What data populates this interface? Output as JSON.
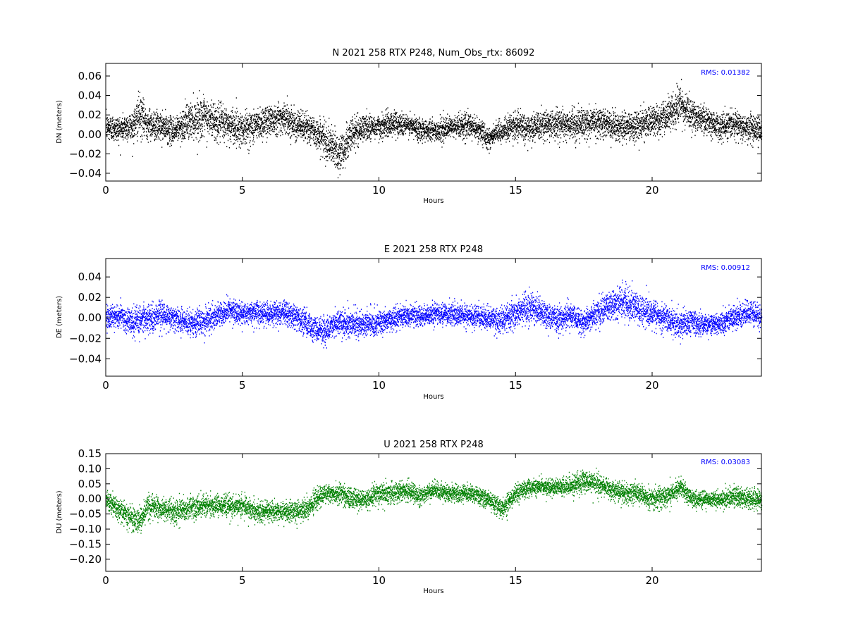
{
  "colors": {
    "N": "#000000",
    "E": "#0000ff",
    "U": "#008000",
    "rms_text": "#0000ff"
  },
  "chart_data": [
    {
      "type": "scatter",
      "component": "N",
      "title": "N 2021 258 RTX  P248, Num_Obs_rtx: 86092",
      "xlabel": "Hours",
      "ylabel": "DN (meters)",
      "rms_label": "RMS:  0.01382",
      "xlim": [
        0,
        24
      ],
      "ylim": [
        -0.048,
        0.073
      ],
      "xticks": [
        0,
        5,
        10,
        15,
        20
      ],
      "yticks": [
        -0.04,
        -0.02,
        0.0,
        0.02,
        0.04,
        0.06
      ],
      "ytick_labels": [
        "−0.04",
        "−0.02",
        "0.00",
        "0.02",
        "0.04",
        "0.06"
      ],
      "color_key": "N",
      "grid": false,
      "series_envelope": {
        "x": [
          0,
          0.5,
          1.0,
          1.2,
          1.5,
          2,
          2.5,
          3,
          3.5,
          4,
          4.5,
          5,
          5.5,
          6,
          6.5,
          7,
          7.5,
          8,
          8.3,
          8.6,
          9,
          9.5,
          10,
          10.5,
          11,
          11.5,
          12,
          12.5,
          13,
          13.5,
          14,
          14.5,
          15,
          15.5,
          16,
          16.5,
          17,
          17.5,
          18,
          18.5,
          19,
          19.5,
          20,
          20.5,
          21,
          21.5,
          22,
          22.5,
          23,
          23.5,
          24
        ],
        "center": [
          0.008,
          0.006,
          0.01,
          0.02,
          0.012,
          0.008,
          0.004,
          0.014,
          0.018,
          0.014,
          0.01,
          0.006,
          0.01,
          0.016,
          0.018,
          0.01,
          0.006,
          -0.005,
          -0.014,
          -0.02,
          0.002,
          0.008,
          0.008,
          0.012,
          0.01,
          0.006,
          0.004,
          0.006,
          0.01,
          0.008,
          -0.004,
          0.004,
          0.01,
          0.006,
          0.01,
          0.012,
          0.01,
          0.012,
          0.014,
          0.01,
          0.008,
          0.01,
          0.014,
          0.018,
          0.03,
          0.02,
          0.014,
          0.008,
          0.012,
          0.008,
          0.004
        ],
        "spread": [
          0.012,
          0.012,
          0.014,
          0.02,
          0.014,
          0.013,
          0.012,
          0.016,
          0.018,
          0.017,
          0.016,
          0.016,
          0.015,
          0.015,
          0.014,
          0.013,
          0.013,
          0.016,
          0.018,
          0.018,
          0.014,
          0.012,
          0.011,
          0.011,
          0.01,
          0.01,
          0.01,
          0.01,
          0.011,
          0.011,
          0.01,
          0.011,
          0.012,
          0.012,
          0.013,
          0.013,
          0.013,
          0.013,
          0.013,
          0.013,
          0.013,
          0.013,
          0.014,
          0.015,
          0.016,
          0.014,
          0.013,
          0.012,
          0.012,
          0.012,
          0.012
        ]
      }
    },
    {
      "type": "scatter",
      "component": "E",
      "title": "E 2021 258 RTX  P248",
      "xlabel": "Hours",
      "ylabel": "DE (meters)",
      "rms_label": "RMS:  0.00912",
      "xlim": [
        0,
        24
      ],
      "ylim": [
        -0.057,
        0.058
      ],
      "xticks": [
        0,
        5,
        10,
        15,
        20
      ],
      "yticks": [
        -0.04,
        -0.02,
        0.0,
        0.02,
        0.04
      ],
      "ytick_labels": [
        "−0.04",
        "−0.02",
        "0.00",
        "0.02",
        "0.04"
      ],
      "color_key": "E",
      "grid": false,
      "series_envelope": {
        "x": [
          0,
          0.5,
          1.0,
          1.5,
          2,
          2.5,
          3,
          3.5,
          4,
          4.5,
          5,
          5.5,
          6,
          6.5,
          7,
          7.5,
          8,
          8.5,
          9,
          9.5,
          10,
          10.5,
          11,
          11.5,
          12,
          12.5,
          13,
          13.5,
          14,
          14.5,
          15,
          15.5,
          16,
          16.5,
          17,
          17.5,
          18,
          18.5,
          19,
          19.5,
          20,
          20.5,
          21,
          21.5,
          22,
          22.5,
          23,
          23.5,
          24
        ],
        "center": [
          0.0,
          0.002,
          -0.004,
          0.0,
          0.004,
          0.0,
          -0.004,
          -0.004,
          0.002,
          0.008,
          0.004,
          0.006,
          0.004,
          0.006,
          0.0,
          -0.008,
          -0.012,
          -0.004,
          -0.006,
          -0.006,
          -0.004,
          0.0,
          0.002,
          0.002,
          0.004,
          0.004,
          0.004,
          0.002,
          0.0,
          -0.002,
          0.006,
          0.012,
          0.004,
          0.0,
          0.002,
          -0.004,
          0.006,
          0.012,
          0.016,
          0.008,
          0.004,
          0.0,
          -0.006,
          -0.004,
          -0.006,
          -0.004,
          0.0,
          0.006,
          0.002
        ],
        "spread": [
          0.01,
          0.01,
          0.012,
          0.012,
          0.012,
          0.011,
          0.011,
          0.011,
          0.01,
          0.01,
          0.01,
          0.01,
          0.011,
          0.011,
          0.011,
          0.012,
          0.012,
          0.011,
          0.011,
          0.011,
          0.01,
          0.009,
          0.009,
          0.009,
          0.009,
          0.009,
          0.009,
          0.009,
          0.01,
          0.011,
          0.013,
          0.014,
          0.012,
          0.011,
          0.011,
          0.011,
          0.012,
          0.013,
          0.015,
          0.013,
          0.012,
          0.011,
          0.012,
          0.01,
          0.009,
          0.009,
          0.01,
          0.011,
          0.01
        ]
      }
    },
    {
      "type": "scatter",
      "component": "U",
      "title": "U 2021 258 RTX  P248",
      "xlabel": "Hours",
      "ylabel": "DU (meters)",
      "rms_label": "RMS:  0.03083",
      "xlim": [
        0,
        24
      ],
      "ylim": [
        -0.24,
        0.15
      ],
      "xticks": [
        0,
        5,
        10,
        15,
        20
      ],
      "yticks": [
        -0.2,
        -0.15,
        -0.1,
        -0.05,
        0.0,
        0.05,
        0.1,
        0.15
      ],
      "ytick_labels": [
        "−0.20",
        "−0.15",
        "−0.10",
        "−0.05",
        "0.00",
        "0.05",
        "0.10",
        "0.15"
      ],
      "color_key": "U",
      "grid": false,
      "series_envelope": {
        "x": [
          0,
          0.5,
          1.0,
          1.2,
          1.5,
          2,
          2.5,
          3,
          3.5,
          4,
          4.5,
          5,
          5.5,
          6,
          6.5,
          7,
          7.5,
          8,
          8.5,
          9,
          9.5,
          10,
          10.5,
          11,
          11.5,
          12,
          12.5,
          13,
          13.5,
          14,
          14.5,
          15,
          15.5,
          16,
          16.5,
          17,
          17.5,
          18,
          18.5,
          19,
          19.5,
          20,
          20.5,
          21,
          21.5,
          22,
          22.5,
          23,
          23.5,
          24
        ],
        "center": [
          0.0,
          -0.04,
          -0.06,
          -0.08,
          -0.02,
          -0.03,
          -0.04,
          -0.03,
          -0.02,
          -0.02,
          -0.02,
          -0.02,
          -0.04,
          -0.04,
          -0.04,
          -0.04,
          -0.02,
          0.02,
          0.02,
          0.0,
          0.0,
          0.02,
          0.02,
          0.03,
          0.01,
          0.03,
          0.02,
          0.02,
          0.02,
          0.0,
          -0.03,
          0.02,
          0.04,
          0.04,
          0.04,
          0.04,
          0.06,
          0.05,
          0.03,
          0.02,
          0.02,
          0.0,
          0.01,
          0.04,
          0.0,
          0.0,
          0.0,
          0.01,
          0.0,
          0.0
        ],
        "spread": [
          0.03,
          0.03,
          0.035,
          0.04,
          0.035,
          0.03,
          0.035,
          0.035,
          0.03,
          0.03,
          0.03,
          0.03,
          0.03,
          0.03,
          0.03,
          0.03,
          0.03,
          0.03,
          0.03,
          0.03,
          0.03,
          0.03,
          0.03,
          0.03,
          0.025,
          0.025,
          0.025,
          0.025,
          0.025,
          0.025,
          0.03,
          0.025,
          0.025,
          0.025,
          0.025,
          0.03,
          0.035,
          0.03,
          0.03,
          0.03,
          0.03,
          0.03,
          0.03,
          0.03,
          0.025,
          0.025,
          0.025,
          0.03,
          0.03,
          0.03
        ]
      }
    }
  ]
}
